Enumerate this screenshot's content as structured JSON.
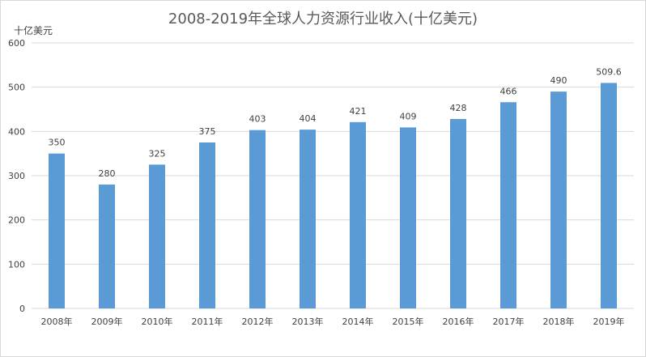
{
  "chart_data": {
    "type": "bar",
    "title": "2008-2019年全球人力资源行业收入(十亿美元)",
    "unit_label": "十亿美元",
    "categories": [
      "2008年",
      "2009年",
      "2010年",
      "2011年",
      "2012年",
      "2013年",
      "2014年",
      "2015年",
      "2016年",
      "2017年",
      "2018年",
      "2019年"
    ],
    "values": [
      350,
      280,
      325,
      375,
      403,
      404,
      421,
      409,
      428,
      466,
      490,
      509.6
    ],
    "data_labels": [
      "350",
      "280",
      "325",
      "375",
      "403",
      "404",
      "421",
      "409",
      "428",
      "466",
      "490",
      "509.6"
    ],
    "ylim": [
      0,
      600
    ],
    "yticks": [
      0,
      100,
      200,
      300,
      400,
      500,
      600
    ],
    "grid": true,
    "legend": "none",
    "bar_color": "#5b9bd5",
    "grid_color": "#d9d9d9"
  }
}
